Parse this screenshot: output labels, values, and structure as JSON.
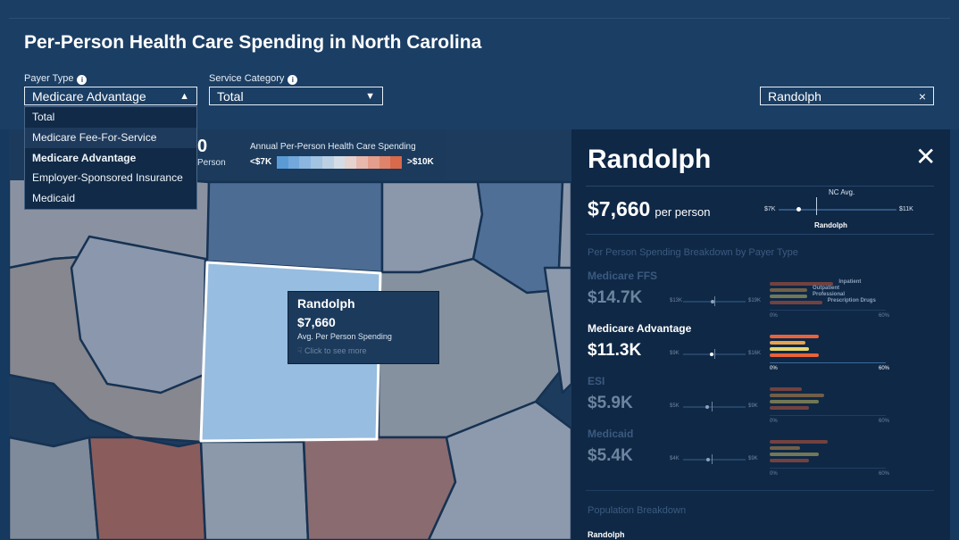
{
  "header": {
    "title": "Per-Person Health Care Spending in North Carolina"
  },
  "filters": {
    "payer_label": "Payer Type",
    "payer_value": "Medicare Advantage",
    "payer_options": [
      "Total",
      "Medicare Fee-For-Service",
      "Medicare Advantage",
      "Employer-Sponsored Insurance",
      "Medicaid"
    ],
    "service_label": "Service Category",
    "service_value": "Total",
    "search_value": "Randolph"
  },
  "legend": {
    "count_partial": "0",
    "person_partial": "Person",
    "title": "Annual Per-Person Health Care Spending",
    "low": "<$7K",
    "high": ">$10K",
    "colors": [
      "#5b9bd5",
      "#73a8db",
      "#8bb6df",
      "#a3c3e2",
      "#bcd0e4",
      "#d4dde6",
      "#e6d2cf",
      "#e8b8ad",
      "#e59e8b",
      "#df846a",
      "#d8694a"
    ]
  },
  "tooltip": {
    "name": "Randolph",
    "value": "$7,660",
    "sub": "Avg. Per Person Spending",
    "hint": "Click to see more"
  },
  "panel": {
    "county": "Randolph",
    "per_person_value": "$7,660",
    "per_person_suffix": "per person",
    "scale_min": "$7K",
    "scale_max": "$11K",
    "nc_avg_label": "NC Avg.",
    "marker_label": "Randolph",
    "marker_fraction": 0.17,
    "avg_fraction": 0.32,
    "breakdown_title": "Per Person Spending Breakdown by Payer Type",
    "bar_legend": [
      "Inpatient",
      "Outpatient",
      "Professional",
      "Prescription Drugs"
    ],
    "bar_colors": [
      "#e8623a",
      "#e8a24c",
      "#ead76b",
      "#e8623a"
    ],
    "payers": [
      {
        "name": "Medicare FFS",
        "value": "$14.7K",
        "min": "$13K",
        "max": "$19K",
        "dot": 0.47,
        "avg": 0.5,
        "bars": [
          0.34,
          0.2,
          0.2,
          0.28
        ],
        "axis0": "0%",
        "axis1": "60%",
        "active": false
      },
      {
        "name": "Medicare Advantage",
        "value": "$11.3K",
        "min": "$9K",
        "max": "$16K",
        "dot": 0.45,
        "avg": 0.5,
        "bars": [
          0.26,
          0.19,
          0.21,
          0.26
        ],
        "axis0": "0%",
        "axis1": "60%",
        "active": true
      },
      {
        "name": "ESI",
        "value": "$5.9K",
        "min": "$5K",
        "max": "$9K",
        "dot": 0.38,
        "avg": 0.45,
        "bars": [
          0.17,
          0.29,
          0.26,
          0.21
        ],
        "axis0": "0%",
        "axis1": "60%",
        "active": false
      },
      {
        "name": "Medicaid",
        "value": "$5.4K",
        "min": "$4K",
        "max": "$9K",
        "dot": 0.4,
        "avg": 0.45,
        "bars": [
          0.31,
          0.16,
          0.26,
          0.21
        ],
        "axis0": "0%",
        "axis1": "60%",
        "active": false
      }
    ],
    "population_title": "Population Breakdown",
    "population_county": "Randolph"
  }
}
